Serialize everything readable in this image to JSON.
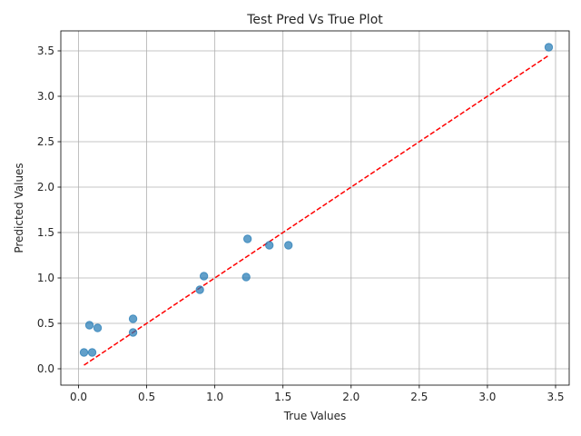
{
  "chart_data": {
    "type": "scatter",
    "title": "Test Pred Vs True Plot",
    "xlabel": "True Values",
    "ylabel": "Predicted Values",
    "xlim": [
      -0.13,
      3.6
    ],
    "ylim": [
      -0.18,
      3.72
    ],
    "xticks": [
      "0.0",
      "0.5",
      "1.0",
      "1.5",
      "2.0",
      "2.5",
      "3.0",
      "3.5"
    ],
    "yticks": [
      "0.0",
      "0.5",
      "1.0",
      "1.5",
      "2.0",
      "2.5",
      "3.0",
      "3.5"
    ],
    "grid": true,
    "points": [
      {
        "x": 0.04,
        "y": 0.18
      },
      {
        "x": 0.08,
        "y": 0.48
      },
      {
        "x": 0.1,
        "y": 0.18
      },
      {
        "x": 0.14,
        "y": 0.45
      },
      {
        "x": 0.4,
        "y": 0.55
      },
      {
        "x": 0.4,
        "y": 0.4
      },
      {
        "x": 0.89,
        "y": 0.87
      },
      {
        "x": 0.92,
        "y": 1.02
      },
      {
        "x": 1.23,
        "y": 1.01
      },
      {
        "x": 1.24,
        "y": 1.43
      },
      {
        "x": 1.4,
        "y": 1.36
      },
      {
        "x": 1.54,
        "y": 1.36
      },
      {
        "x": 3.45,
        "y": 3.54
      }
    ],
    "reference_line": {
      "x": [
        0.04,
        3.45
      ],
      "y": [
        0.04,
        3.45
      ],
      "style": "dashed"
    },
    "colors": {
      "points": "#1f77b4",
      "reference_line": "#ff0000",
      "grid": "#b0b0b0"
    }
  }
}
